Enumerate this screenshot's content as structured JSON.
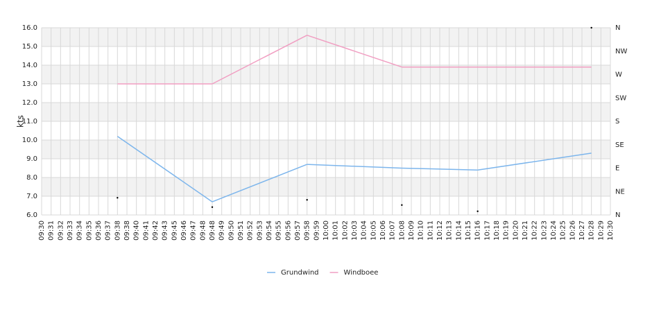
{
  "chart_data": {
    "type": "line",
    "y_label": "kts",
    "categories": [
      "09:30",
      "09:31",
      "09:32",
      "09:33",
      "09:34",
      "09:35",
      "09:36",
      "09:37",
      "09:38",
      "09:38",
      "09:40",
      "09:41",
      "09:42",
      "09:43",
      "09:45",
      "09:46",
      "09:47",
      "09:48",
      "09:48",
      "09:49",
      "09:50",
      "09:51",
      "09:52",
      "09:53",
      "09:54",
      "09:55",
      "09:56",
      "09:57",
      "09:58",
      "09:59",
      "10:00",
      "10:01",
      "10:02",
      "10:03",
      "10:04",
      "10:05",
      "10:06",
      "10:07",
      "10:08",
      "10:09",
      "10:10",
      "10:11",
      "10:12",
      "10:13",
      "10:14",
      "10:15",
      "10:16",
      "10:17",
      "10:18",
      "10:19",
      "10:20",
      "10:21",
      "10:22",
      "10:23",
      "10:24",
      "10:25",
      "10:26",
      "10:27",
      "10:28",
      "10:29",
      "10:30"
    ],
    "connect_gaps": true,
    "series": [
      {
        "name": "Grundwind",
        "color": "#7cb5ec",
        "values": [
          null,
          null,
          null,
          null,
          null,
          null,
          null,
          null,
          10.2,
          null,
          null,
          null,
          null,
          null,
          null,
          null,
          null,
          null,
          6.7,
          null,
          null,
          null,
          null,
          null,
          null,
          null,
          null,
          null,
          8.7,
          null,
          null,
          null,
          null,
          null,
          null,
          null,
          null,
          null,
          8.5,
          null,
          null,
          null,
          null,
          null,
          null,
          null,
          8.4,
          null,
          null,
          null,
          null,
          null,
          null,
          null,
          null,
          null,
          null,
          null,
          9.3,
          null,
          null
        ]
      },
      {
        "name": "Windboee",
        "color": "#f19ec2",
        "values": [
          null,
          null,
          null,
          null,
          null,
          null,
          null,
          null,
          13.0,
          null,
          null,
          null,
          null,
          null,
          null,
          null,
          null,
          null,
          13.0,
          null,
          null,
          null,
          null,
          null,
          null,
          null,
          null,
          null,
          15.6,
          null,
          null,
          null,
          null,
          null,
          null,
          null,
          null,
          null,
          13.9,
          null,
          null,
          null,
          null,
          null,
          null,
          null,
          null,
          null,
          null,
          null,
          null,
          null,
          null,
          null,
          null,
          null,
          null,
          null,
          13.9,
          null,
          null
        ]
      },
      {
        "type": "scatter",
        "axis": "y2",
        "color": "#000000",
        "values": [
          null,
          null,
          null,
          null,
          null,
          null,
          null,
          null,
          33,
          null,
          null,
          null,
          null,
          null,
          null,
          null,
          null,
          null,
          15,
          null,
          null,
          null,
          null,
          null,
          null,
          null,
          null,
          null,
          29,
          null,
          null,
          null,
          null,
          null,
          null,
          null,
          null,
          null,
          19,
          null,
          null,
          null,
          null,
          null,
          null,
          null,
          7,
          null,
          null,
          null,
          null,
          null,
          null,
          null,
          null,
          null,
          null,
          null,
          360,
          null,
          null
        ]
      }
    ],
    "ylim": [
      6,
      16
    ],
    "yticks": [
      {
        "value": 6,
        "label": "6.0"
      },
      {
        "value": 7,
        "label": "7.0"
      },
      {
        "value": 8,
        "label": "8.0"
      },
      {
        "value": 9,
        "label": "9.0"
      },
      {
        "value": 10,
        "label": "10.0"
      },
      {
        "value": 11,
        "label": "11.0"
      },
      {
        "value": 12,
        "label": "12.0"
      },
      {
        "value": 13,
        "label": "13.0"
      },
      {
        "value": 14,
        "label": "14.0"
      },
      {
        "value": 15,
        "label": "15.0"
      },
      {
        "value": 16,
        "label": "16.0"
      }
    ],
    "y2lim": [
      0,
      360
    ],
    "y2ticks": [
      {
        "value": 0,
        "label": "N"
      },
      {
        "value": 45,
        "label": "NE"
      },
      {
        "value": 90,
        "label": "E"
      },
      {
        "value": 135,
        "label": "SE"
      },
      {
        "value": 180,
        "label": "S"
      },
      {
        "value": 225,
        "label": "SW"
      },
      {
        "value": 270,
        "label": "W"
      },
      {
        "value": 315,
        "label": "NW"
      },
      {
        "value": 360,
        "label": "N"
      }
    ],
    "grid": true,
    "legend": "bottom"
  }
}
